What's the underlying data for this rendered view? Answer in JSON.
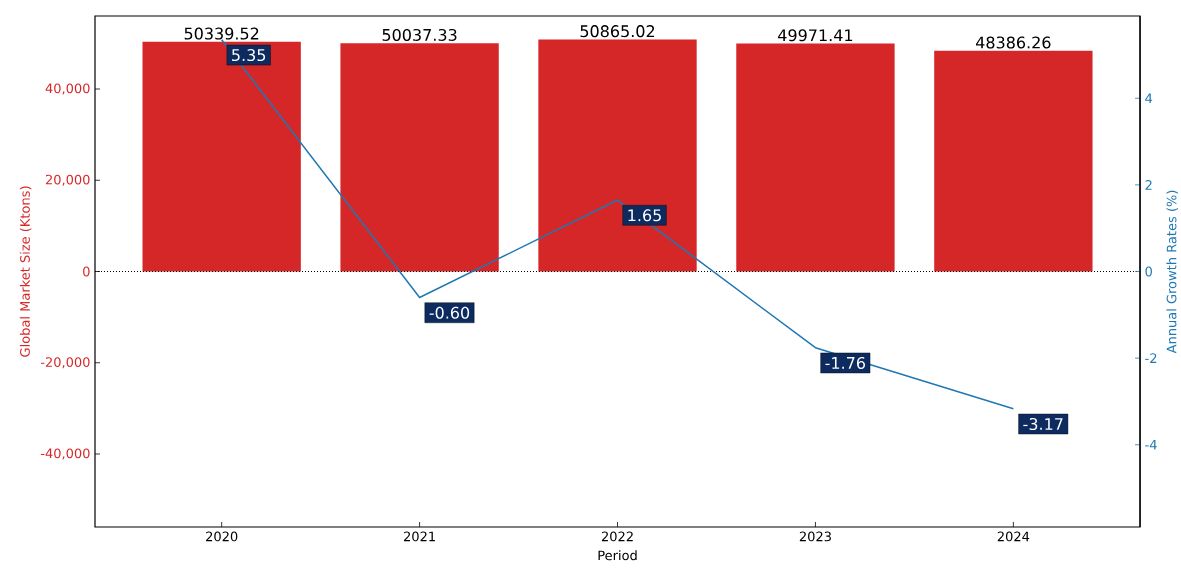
{
  "chart_data": {
    "type": "bar",
    "categories": [
      "2020",
      "2021",
      "2022",
      "2023",
      "2024"
    ],
    "series": [
      {
        "color": "#d62728",
        "values": [
          50339.52,
          50037.33,
          50865.02,
          49971.41,
          48386.26
        ],
        "value_labels": [
          "50339.52",
          "50037.33",
          "50865.02",
          "49971.41",
          "48386.26"
        ]
      },
      {
        "type": "line",
        "axis": "y2",
        "color": "#1f77b4",
        "values": [
          5.35,
          -0.6,
          1.65,
          -1.76,
          -3.17
        ],
        "value_labels": [
          "5.35",
          "-0.60",
          "1.65",
          "-1.76",
          "-3.17"
        ]
      }
    ],
    "xlabel": "Period",
    "ylabel": "Global Market Size (Ktons)",
    "y2label": "Annual Growth Rates (%)",
    "ylim": [
      -56000,
      56000
    ],
    "yticks": [
      {
        "value": -40000,
        "label": "-40,000"
      },
      {
        "value": -20000,
        "label": "-20,000"
      },
      {
        "value": 0,
        "label": "0"
      },
      {
        "value": 20000,
        "label": "20,000"
      },
      {
        "value": 40000,
        "label": "40,000"
      }
    ],
    "y2lim": [
      -5.9,
      5.9
    ],
    "y2ticks": [
      -4,
      -2,
      0,
      2,
      4
    ],
    "ref_lines": [
      {
        "axis": "y",
        "value": 0,
        "color": "#000000",
        "line_style": "dotted"
      }
    ],
    "grid": false
  }
}
